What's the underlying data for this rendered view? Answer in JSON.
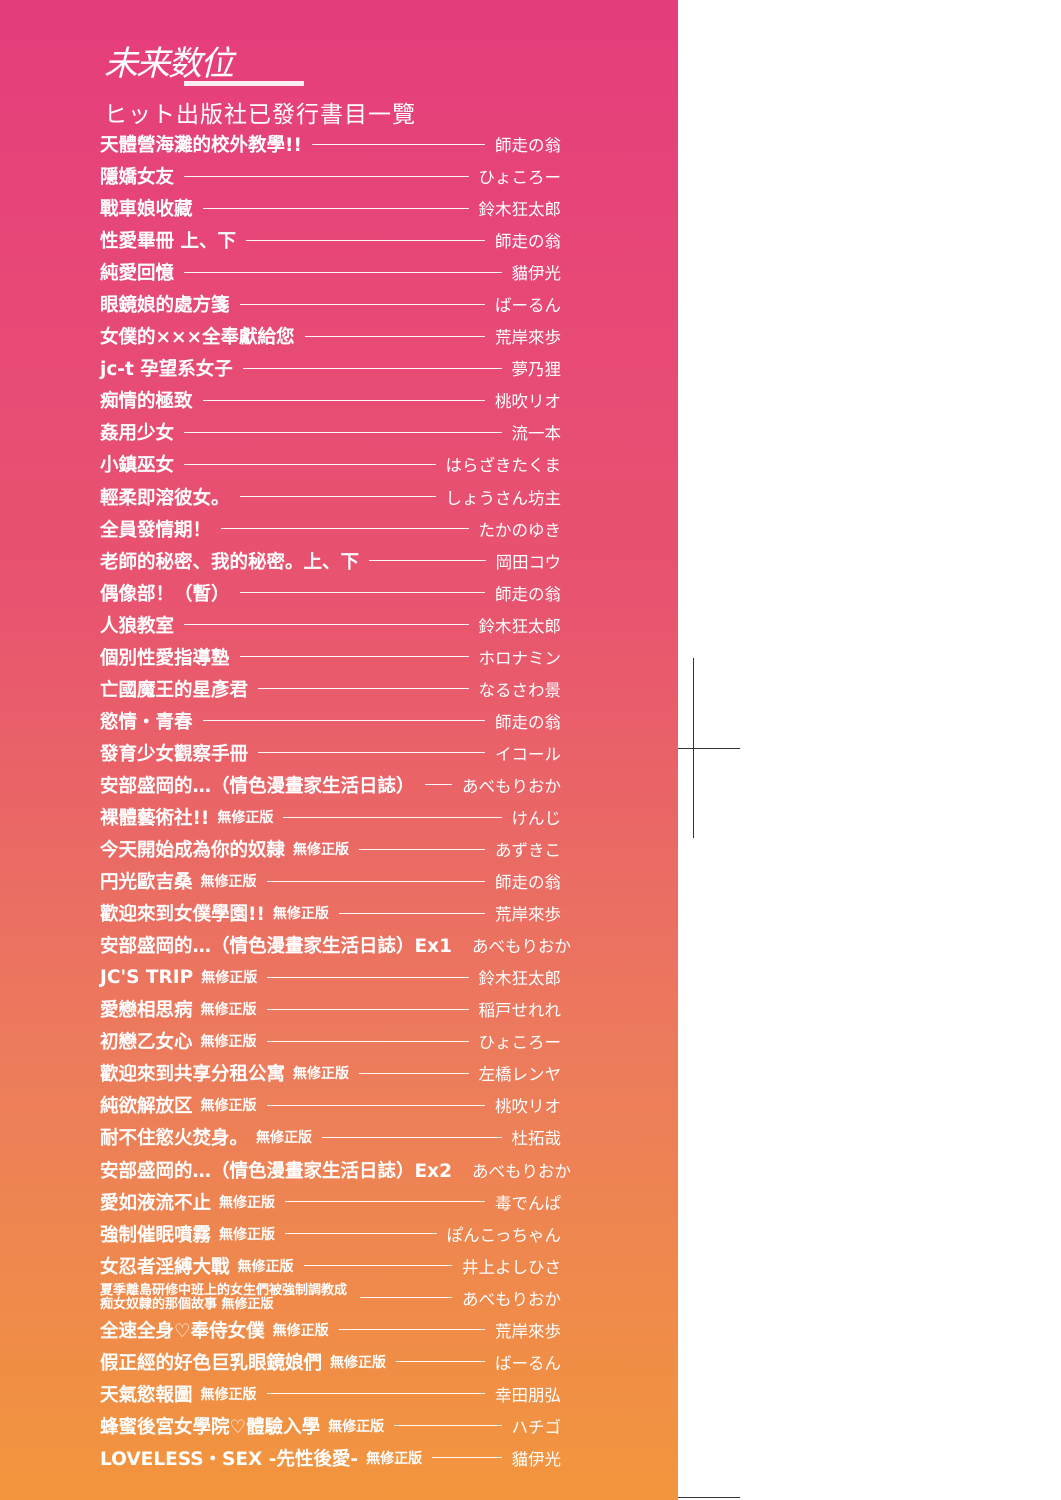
{
  "logo": "未来数位",
  "heading": "ヒット出版社已發行書目一覽",
  "books": [
    {
      "title": "天體營海灘的校外教學!!",
      "tag": "",
      "author": "師走の翁"
    },
    {
      "title": "隱嬌女友",
      "tag": "",
      "author": "ひょころー"
    },
    {
      "title": "戰車娘收藏",
      "tag": "",
      "author": "鈴木狂太郎"
    },
    {
      "title": "性愛畢冊 上、下",
      "tag": "",
      "author": "師走の翁"
    },
    {
      "title": "純愛回憶",
      "tag": "",
      "author": "貓伊光"
    },
    {
      "title": "眼鏡娘的處方箋",
      "tag": "",
      "author": "ばーるん"
    },
    {
      "title": "女僕的×××全奉獻給您",
      "tag": "",
      "author": "荒岸來歩"
    },
    {
      "title": "jc-t 孕望系女子",
      "tag": "",
      "author": "夢乃狸"
    },
    {
      "title": "痴情的極致",
      "tag": "",
      "author": "桃吹リオ"
    },
    {
      "title": "姦用少女",
      "tag": "",
      "author": "流一本"
    },
    {
      "title": "小鎮巫女",
      "tag": "",
      "author": "はらざきたくま"
    },
    {
      "title": "輕柔即溶彼女。",
      "tag": "",
      "author": "しょうさん坊主"
    },
    {
      "title": "全員發情期！",
      "tag": "",
      "author": "たかのゆき"
    },
    {
      "title": "老師的秘密、我的秘密。上、下",
      "tag": "",
      "author": "岡田コウ"
    },
    {
      "title": "偶像部！（暫）",
      "tag": "",
      "author": "師走の翁"
    },
    {
      "title": "人狼教室",
      "tag": "",
      "author": "鈴木狂太郎"
    },
    {
      "title": "個別性愛指導塾",
      "tag": "",
      "author": "ホロナミン"
    },
    {
      "title": "亡國魔王的星彥君",
      "tag": "",
      "author": "なるさわ景"
    },
    {
      "title": "慾情・青春",
      "tag": "",
      "author": "師走の翁"
    },
    {
      "title": "發育少女觀察手冊",
      "tag": "",
      "author": "イコール"
    },
    {
      "title": "安部盛岡的…（情色漫畫家生活日誌）",
      "tag": "",
      "author": "あべもりおか"
    },
    {
      "title": "裸體藝術社!!",
      "tag": "無修正版",
      "author": "けんじ"
    },
    {
      "title": "今天開始成為你的奴隸",
      "tag": "無修正版",
      "author": "あずきこ"
    },
    {
      "title": "円光歐吉桑",
      "tag": "無修正版",
      "author": "師走の翁"
    },
    {
      "title": "歡迎來到女僕學園!!",
      "tag": "無修正版",
      "author": "荒岸來歩"
    },
    {
      "title": "安部盛岡的…（情色漫畫家生活日誌）Ex1",
      "tag": "",
      "author": "あべもりおか"
    },
    {
      "title": "JC'S TRIP",
      "tag": "無修正版",
      "author": "鈴木狂太郎"
    },
    {
      "title": "愛戀相思病",
      "tag": "無修正版",
      "author": "稲戸せれれ"
    },
    {
      "title": "初戀乙女心",
      "tag": "無修正版",
      "author": "ひょころー"
    },
    {
      "title": "歡迎來到共享分租公寓",
      "tag": "無修正版",
      "author": "左橋レンヤ"
    },
    {
      "title": "純欲解放区",
      "tag": "無修正版",
      "author": "桃吹リオ"
    },
    {
      "title": "耐不住慾火焚身。",
      "tag": "無修正版",
      "author": "杜拓哉"
    },
    {
      "title": "安部盛岡的…（情色漫畫家生活日誌）Ex2",
      "tag": "",
      "author": "あべもりおか"
    },
    {
      "title": "愛如液流不止",
      "tag": "無修正版",
      "author": "毒でんぱ"
    },
    {
      "title": "強制催眠噴霧",
      "tag": "無修正版",
      "author": "ぽんこっちゃん"
    },
    {
      "title": "女忍者淫縛大戰",
      "tag": "無修正版",
      "author": "井上よしひさ"
    },
    {
      "title": "夏季離島研修中班上的女生們被強制調教成痴女奴隸的那個故事 無修正版",
      "tag": "",
      "author": "あべもりおか",
      "two_line": true
    },
    {
      "title": "全速全身♡奉侍女僕",
      "tag": "無修正版",
      "author": "荒岸來歩"
    },
    {
      "title": "假正經的好色巨乳眼鏡娘們",
      "tag": "無修正版",
      "author": "ばーるん"
    },
    {
      "title": "天氣慾報圖",
      "tag": "無修正版",
      "author": "幸田朋弘"
    },
    {
      "title": "蜂蜜後宮女學院♡體驗入學",
      "tag": "無修正版",
      "author": "ハチゴ"
    },
    {
      "title": "LOVELESS・SEX -先性後愛-",
      "tag": "無修正版",
      "author": "貓伊光"
    }
  ]
}
